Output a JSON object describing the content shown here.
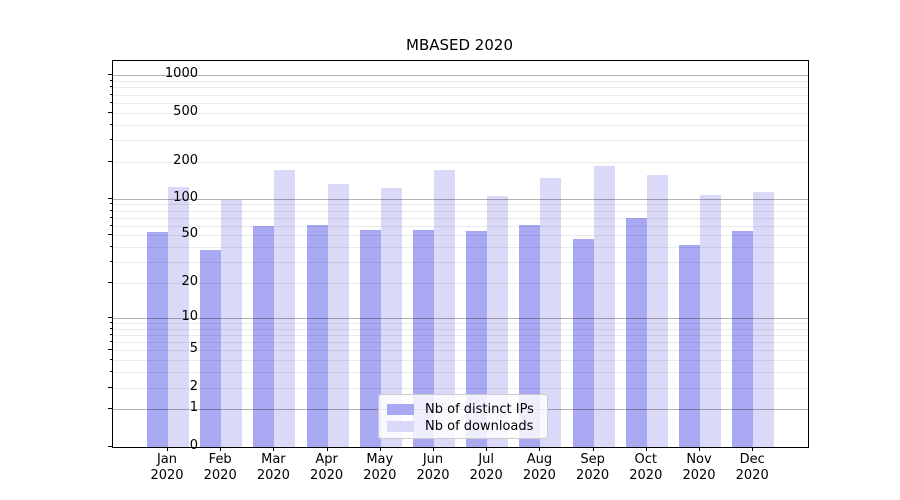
{
  "title": "MBASED 2020",
  "chart_data": {
    "type": "bar",
    "title": "MBASED 2020",
    "xlabel": "",
    "ylabel": "",
    "yscale": "log1p",
    "ylim": [
      0,
      1310
    ],
    "grid": true,
    "legend_position": "lower center",
    "ytick_labels": [
      "0",
      "1",
      "2",
      "5",
      "10",
      "20",
      "50",
      "100",
      "200",
      "500",
      "1000"
    ],
    "ytick_values": [
      0,
      1,
      2,
      5,
      10,
      20,
      50,
      100,
      200,
      500,
      1000
    ],
    "categories": [
      {
        "month": "Jan",
        "year": "2020"
      },
      {
        "month": "Feb",
        "year": "2020"
      },
      {
        "month": "Mar",
        "year": "2020"
      },
      {
        "month": "Apr",
        "year": "2020"
      },
      {
        "month": "May",
        "year": "2020"
      },
      {
        "month": "Jun",
        "year": "2020"
      },
      {
        "month": "Jul",
        "year": "2020"
      },
      {
        "month": "Aug",
        "year": "2020"
      },
      {
        "month": "Sep",
        "year": "2020"
      },
      {
        "month": "Oct",
        "year": "2020"
      },
      {
        "month": "Nov",
        "year": "2020"
      },
      {
        "month": "Dec",
        "year": "2020"
      }
    ],
    "series": [
      {
        "name": "Nb of distinct IPs",
        "color": "#a8a8f3",
        "values": [
          53,
          38,
          60,
          61,
          55,
          55,
          54,
          61,
          47,
          69,
          42,
          54
        ]
      },
      {
        "name": "Nb of downloads",
        "color": "#dadaf8",
        "values": [
          124,
          97,
          171,
          132,
          122,
          171,
          105,
          147,
          185,
          156,
          108,
          113
        ]
      }
    ]
  }
}
